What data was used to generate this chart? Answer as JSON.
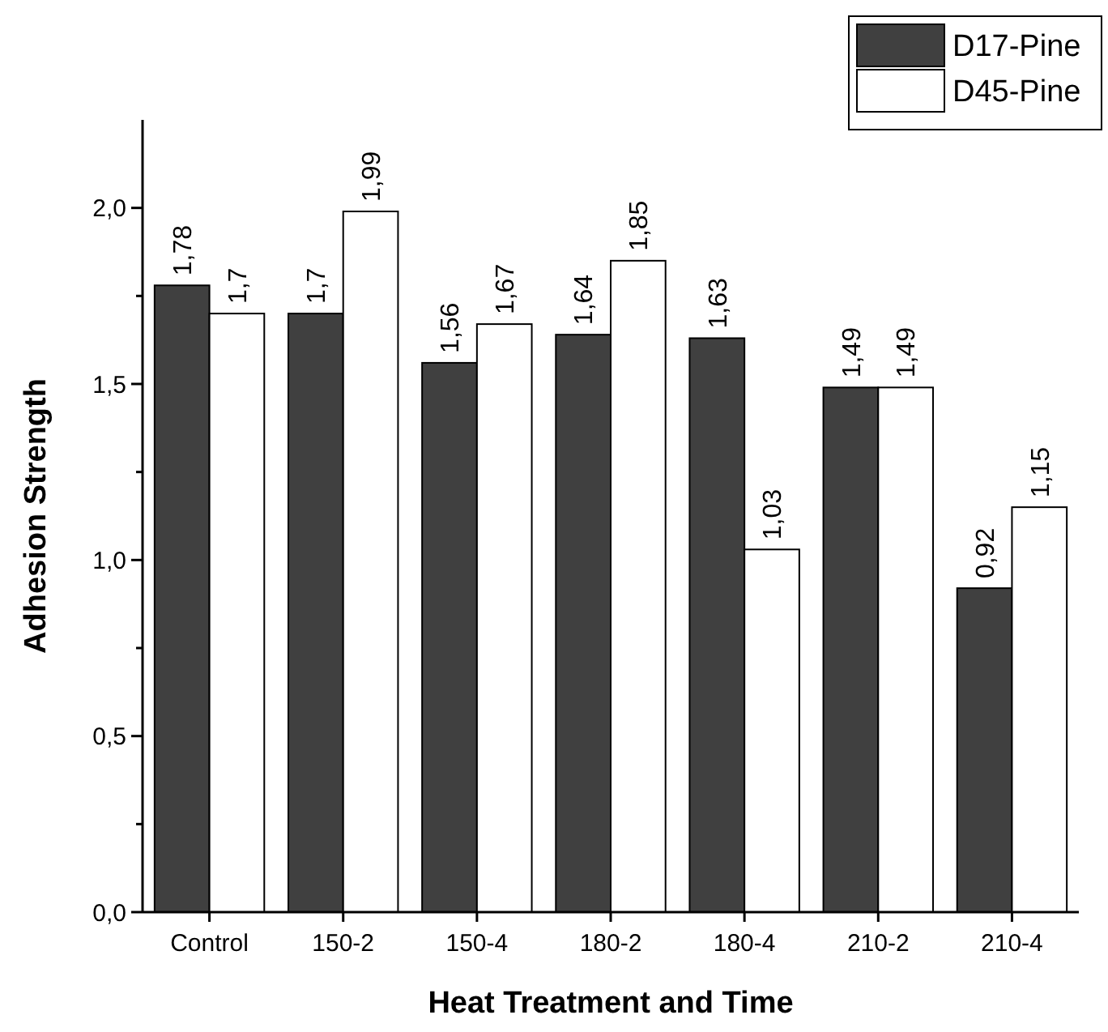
{
  "chart_data": {
    "type": "bar",
    "xlabel": "Heat Treatment and Time",
    "ylabel": "Adhesion Strength",
    "categories": [
      "Control",
      "150-2",
      "150-4",
      "180-2",
      "180-4",
      "210-2",
      "210-4"
    ],
    "series": [
      {
        "name": "D17-Pine",
        "color": "#404040",
        "values": [
          1.78,
          1.7,
          1.56,
          1.64,
          1.63,
          1.49,
          0.92
        ],
        "value_labels": [
          "1,78",
          "1,7",
          "1,56",
          "1,64",
          "1,63",
          "1,49",
          "0,92"
        ]
      },
      {
        "name": "D45-Pine",
        "color": "#ffffff",
        "values": [
          1.7,
          1.99,
          1.67,
          1.85,
          1.03,
          1.49,
          1.15
        ],
        "value_labels": [
          "1,7",
          "1,99",
          "1,67",
          "1,85",
          "1,03",
          "1,49",
          "1,15"
        ]
      }
    ],
    "ylim": [
      0,
      2.25
    ],
    "yticks": [
      {
        "value": 0,
        "label": "0,0"
      },
      {
        "value": 0.25,
        "label": null
      },
      {
        "value": 0.5,
        "label": "0,5"
      },
      {
        "value": 0.75,
        "label": null
      },
      {
        "value": 1,
        "label": "1,0"
      },
      {
        "value": 1.25,
        "label": null
      },
      {
        "value": 1.5,
        "label": "1,5"
      },
      {
        "value": 1.75,
        "label": null
      },
      {
        "value": 2,
        "label": "2,0"
      }
    ],
    "legend": "top right",
    "grid": false
  }
}
